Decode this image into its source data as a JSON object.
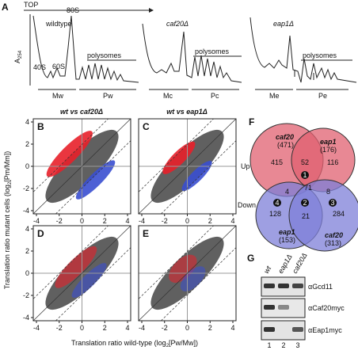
{
  "panel_a": {
    "letter": "A",
    "top": "TOP",
    "ylabel": {
      "main": "A",
      "sub": "254"
    },
    "profiles": [
      {
        "name": "wildtype",
        "peaks": [
          "40S",
          "60S",
          "80S"
        ],
        "polysomes": "polysomes",
        "fractions": [
          "Mw",
          "Pw"
        ]
      },
      {
        "name": "caf20Δ",
        "polysomes": "polysomes",
        "fractions": [
          "Mc",
          "Pc"
        ]
      },
      {
        "name": "eap1Δ",
        "polysomes": "polysomes",
        "fractions": [
          "Me",
          "Pe"
        ]
      }
    ]
  },
  "scatter": {
    "titles": [
      "wt vs caf20Δ",
      "wt vs eap1Δ"
    ],
    "letters": [
      "B",
      "C",
      "D",
      "E"
    ],
    "ticks": [
      -4,
      -2,
      0,
      2,
      4
    ],
    "ylabel": [
      "Translation ratio mutant cells (log",
      "2",
      "[Pm/Mm])"
    ],
    "xlabel": [
      "Translation ratio wild-type (log",
      "2",
      "[Pw/Mw])"
    ]
  },
  "venn": {
    "letter": "F",
    "up": "Up",
    "down": "Down",
    "up_sets": [
      {
        "name": "caf20",
        "count": "(471)"
      },
      {
        "name": "eap1",
        "count": "(176)"
      }
    ],
    "up_regions": [
      "415",
      "52",
      "116"
    ],
    "down_sets": [
      {
        "name": "eap1",
        "count": "(153)"
      },
      {
        "name": "caf20",
        "count": "(313)"
      }
    ],
    "down_regions": [
      "128",
      "21",
      "284"
    ],
    "cross": [
      "4",
      "71",
      "8"
    ],
    "markers": [
      "1",
      "2",
      "3",
      "4"
    ]
  },
  "blot": {
    "letter": "G",
    "lanes": [
      "wt",
      "eap1Δ",
      "caf20Δ"
    ],
    "antibodies": [
      "αGcd11",
      "αCaf20myc",
      "αEap1myc"
    ],
    "lane_numbers": [
      "1",
      "2",
      "3"
    ]
  }
}
